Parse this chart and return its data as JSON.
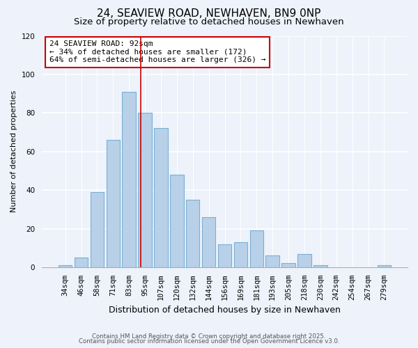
{
  "title": "24, SEAVIEW ROAD, NEWHAVEN, BN9 0NP",
  "subtitle": "Size of property relative to detached houses in Newhaven",
  "xlabel": "Distribution of detached houses by size in Newhaven",
  "ylabel": "Number of detached properties",
  "bar_labels": [
    "34sqm",
    "46sqm",
    "58sqm",
    "71sqm",
    "83sqm",
    "95sqm",
    "107sqm",
    "120sqm",
    "132sqm",
    "144sqm",
    "156sqm",
    "169sqm",
    "181sqm",
    "193sqm",
    "205sqm",
    "218sqm",
    "230sqm",
    "242sqm",
    "254sqm",
    "267sqm",
    "279sqm"
  ],
  "bar_values": [
    1,
    5,
    39,
    66,
    91,
    80,
    72,
    48,
    35,
    26,
    12,
    13,
    19,
    6,
    2,
    7,
    1,
    0,
    0,
    0,
    1
  ],
  "bar_color": "#b8d0e8",
  "bar_edge_color": "#7aafd4",
  "vline_x_index": 4,
  "vline_color": "#cc0000",
  "annotation_text": "24 SEAVIEW ROAD: 92sqm\n← 34% of detached houses are smaller (172)\n64% of semi-detached houses are larger (326) →",
  "annotation_box_color": "#ffffff",
  "annotation_box_edge": "#cc0000",
  "ylim": [
    0,
    120
  ],
  "yticks": [
    0,
    20,
    40,
    60,
    80,
    100,
    120
  ],
  "footnote1": "Contains HM Land Registry data © Crown copyright and database right 2025.",
  "footnote2": "Contains public sector information licensed under the Open Government Licence v3.0.",
  "bg_color": "#edf2fb",
  "title_fontsize": 11,
  "subtitle_fontsize": 9.5,
  "xlabel_fontsize": 9,
  "ylabel_fontsize": 8,
  "tick_fontsize": 7.5,
  "annotation_fontsize": 8
}
